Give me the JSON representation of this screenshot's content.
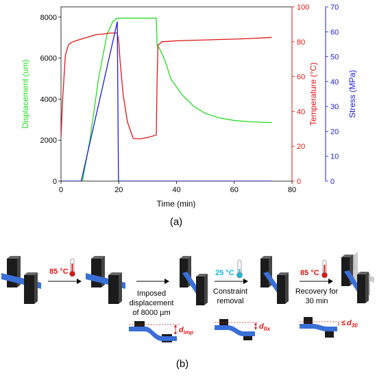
{
  "panel_a_label": "(a)",
  "panel_b_label": "(b)",
  "colors": {
    "displacement": "#22dd22",
    "temperature": "#e01414",
    "stress": "#1a1ae0",
    "beam": "#3a6fd8",
    "block": "#1b1b1b",
    "red_text": "#e01414",
    "cyan_text": "#12b8de"
  },
  "chart_data": {
    "type": "line",
    "xlabel": "Time (min)",
    "xlim": [
      0,
      80
    ],
    "x_ticks": [
      "0",
      "20",
      "40",
      "60",
      "80"
    ],
    "y_axes": [
      {
        "id": "displacement",
        "label": "Displacement (um)",
        "lim": [
          0,
          8500
        ],
        "ticks": [
          "0",
          "2000",
          "4000",
          "6000",
          "8000"
        ]
      },
      {
        "id": "temperature",
        "label": "Temperature (°C)",
        "lim": [
          0,
          100
        ],
        "ticks": [
          "0",
          "20",
          "40",
          "60",
          "80",
          "100"
        ]
      },
      {
        "id": "stress",
        "label": "Stress (MPa)",
        "lim": [
          0,
          70
        ],
        "ticks": [
          "0",
          "10",
          "20",
          "30",
          "40",
          "50",
          "60",
          "70"
        ]
      }
    ],
    "series": [
      {
        "name": "Displacement",
        "axis": "displacement",
        "color": "#22dd22",
        "x": [
          0,
          7,
          7.5,
          10,
          13,
          16,
          18,
          19.5,
          20,
          22,
          26,
          30,
          33,
          33.3,
          34,
          36,
          38,
          42,
          46,
          50,
          55,
          60,
          65,
          70,
          73
        ],
        "y": [
          0,
          0,
          50,
          2000,
          5000,
          7200,
          7800,
          7950,
          7950,
          7950,
          7950,
          7950,
          7950,
          6600,
          6500,
          5900,
          5000,
          4200,
          3650,
          3300,
          3080,
          2960,
          2900,
          2870,
          2860
        ]
      },
      {
        "name": "Temperature",
        "axis": "temperature",
        "color": "#e01414",
        "x": [
          0,
          0.5,
          1.5,
          2.5,
          3.5,
          5,
          8,
          10,
          12,
          15,
          17,
          18.5,
          19.5,
          20,
          20.5,
          21.5,
          23,
          25,
          27,
          30,
          33,
          33.3,
          33.6,
          35,
          40,
          45,
          50,
          55,
          60,
          65,
          70,
          73
        ],
        "y": [
          25,
          45,
          72,
          78,
          79.5,
          80.5,
          82,
          83,
          84,
          84.5,
          85,
          85,
          85,
          80,
          68,
          50,
          34,
          24.5,
          24.2,
          25,
          26.5,
          60,
          78,
          80,
          80.5,
          80.8,
          81,
          81.3,
          81.5,
          81.8,
          82.2,
          82.5
        ]
      },
      {
        "name": "Stress",
        "axis": "stress",
        "color": "#1a1ae0",
        "x": [
          0,
          7,
          19.5,
          19.9,
          20.1,
          73
        ],
        "y": [
          0,
          0,
          64,
          0,
          0,
          0
        ]
      }
    ],
    "grid": false,
    "legend": "none"
  },
  "process": {
    "step1_temp": "85 °C",
    "arrow2_text": [
      "Imposed",
      "displacement",
      "of 8000 µm"
    ],
    "step3_temp": "25 °C",
    "arrow3_text": [
      "Constraint",
      "removal"
    ],
    "step4_temp": "85 °C",
    "arrow4_text": [
      "Recovery for",
      "30 min"
    ],
    "d_imp_label": "d",
    "d_imp_sub": "imp",
    "d_fix_label": "d",
    "d_fix_sub": "fix",
    "d_30_label": "d",
    "d_30_sub": "30",
    "le_symbol": "≤"
  }
}
